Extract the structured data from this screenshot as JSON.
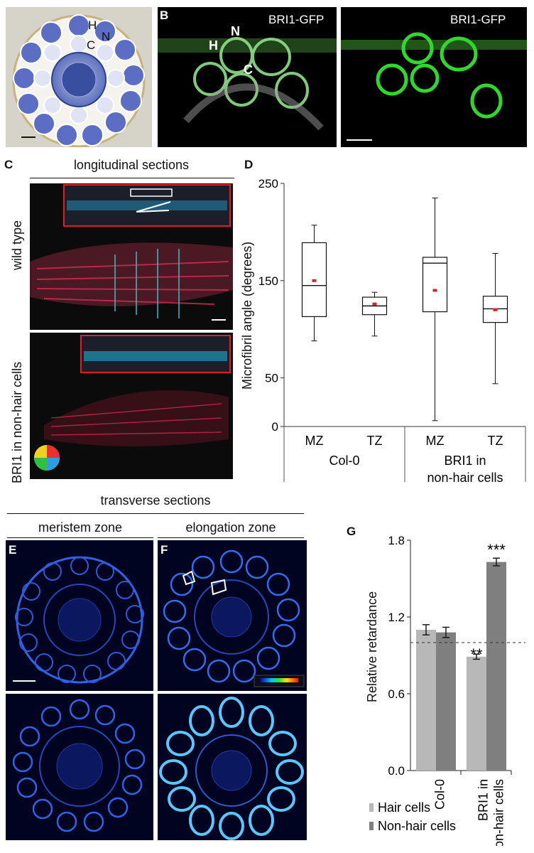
{
  "panels": {
    "A": {
      "label": "A",
      "cell_labels": {
        "hair": "H",
        "non_hair": "N",
        "cortex": "C"
      }
    },
    "B": {
      "label": "B",
      "image_titles": [
        "BRI1-GFP",
        "BRI1-GFP"
      ],
      "cell_labels": {
        "hair": "H",
        "non_hair": "N",
        "cortex": "C"
      }
    },
    "C": {
      "label": "C",
      "header": "longitudinal sections",
      "row_labels": [
        "wild type",
        "BRI1 in non-hair cells"
      ]
    },
    "D": {
      "label": "D"
    },
    "E": {
      "label": "E"
    },
    "F": {
      "label": "F"
    },
    "G": {
      "label": "G"
    },
    "transverse": {
      "header": "transverse sections",
      "subheaders": [
        "meristem zone",
        "elongation zone"
      ]
    }
  },
  "chart_data": [
    {
      "type": "box",
      "panel": "D",
      "ylabel": "Microfibril angle (degrees)",
      "ylim": [
        0,
        250
      ],
      "yticks": [
        0,
        50,
        150,
        250
      ],
      "categories": [
        "MZ",
        "TZ",
        "MZ",
        "TZ"
      ],
      "groups": [
        {
          "label": "Col-0",
          "categories": [
            "MZ",
            "TZ"
          ]
        },
        {
          "label": "BRI1 in non-hair cells",
          "categories": [
            "MZ",
            "TZ"
          ]
        }
      ],
      "boxes": [
        {
          "category": "MZ",
          "group": "Col-0",
          "min": 88,
          "q1": 113,
          "median": 145,
          "q3": 189,
          "max": 207,
          "mean": 150
        },
        {
          "category": "TZ",
          "group": "Col-0",
          "min": 93,
          "q1": 115,
          "median": 124,
          "q3": 133,
          "max": 138,
          "mean": 126
        },
        {
          "category": "MZ",
          "group": "BRI1 in non-hair cells",
          "min": 6,
          "q1": 118,
          "median": 168,
          "q3": 174,
          "max": 235,
          "mean": 140
        },
        {
          "category": "TZ",
          "group": "BRI1 in non-hair cells",
          "min": 44,
          "q1": 107,
          "median": 121,
          "q3": 134,
          "max": 178,
          "mean": 120
        }
      ],
      "mean_color": "#e02020"
    },
    {
      "type": "bar",
      "panel": "G",
      "ylabel": "Relative retardance",
      "ylim": [
        0.0,
        1.8
      ],
      "yticks": [
        0.0,
        0.6,
        1.2,
        1.8
      ],
      "reference_line": 1.0,
      "categories": [
        "Col-0",
        "BRI1 in non-hair cells"
      ],
      "series": [
        {
          "name": "Hair cells",
          "color": "#b8b8b8",
          "values": [
            1.1,
            0.89
          ],
          "errors": [
            0.04,
            0.02
          ],
          "annotations": [
            "",
            "**"
          ]
        },
        {
          "name": "Non-hair cells",
          "color": "#7f7f7f",
          "values": [
            1.08,
            1.63
          ],
          "errors": [
            0.04,
            0.03
          ],
          "annotations": [
            "",
            "***"
          ]
        }
      ],
      "legend": "bottom-left"
    }
  ]
}
